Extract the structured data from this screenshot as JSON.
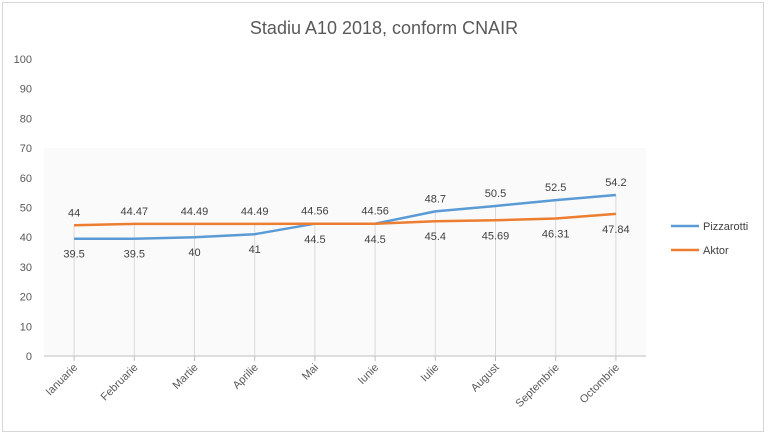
{
  "chart_data": {
    "type": "line",
    "title": "Stadiu A10 2018, conform CNAIR",
    "xlabel": "",
    "ylabel": "",
    "ylim": [
      0,
      100
    ],
    "yticks": [
      0,
      10,
      20,
      30,
      40,
      50,
      60,
      70,
      80,
      90,
      100
    ],
    "categories": [
      "Ianuarie",
      "Februarie",
      "Martie",
      "Aprilie",
      "Mai",
      "Iunie",
      "Iulie",
      "August",
      "Septembrie",
      "Octombrie"
    ],
    "grid": "vertical drop lines at categories",
    "legend_position": "right",
    "series": [
      {
        "name": "Pizzarotti",
        "color": "#5b9bd5",
        "values": [
          39.5,
          39.5,
          40,
          41,
          44.56,
          44.56,
          48.7,
          50.5,
          52.5,
          54.2
        ],
        "labels": [
          "39.5",
          "39.5",
          "40",
          "41",
          "44.56",
          "44.56",
          "48.7",
          "50.5",
          "52.5",
          "54.2"
        ]
      },
      {
        "name": "Aktor",
        "color": "#ed7d31",
        "values": [
          44,
          44.47,
          44.49,
          44.49,
          44.5,
          44.5,
          45.4,
          45.69,
          46.31,
          47.84
        ],
        "labels": [
          "44",
          "44.47",
          "44.49",
          "44.49",
          "44.5",
          "44.5",
          "45.4",
          "45.69",
          "46.31",
          "47.84"
        ]
      }
    ]
  }
}
